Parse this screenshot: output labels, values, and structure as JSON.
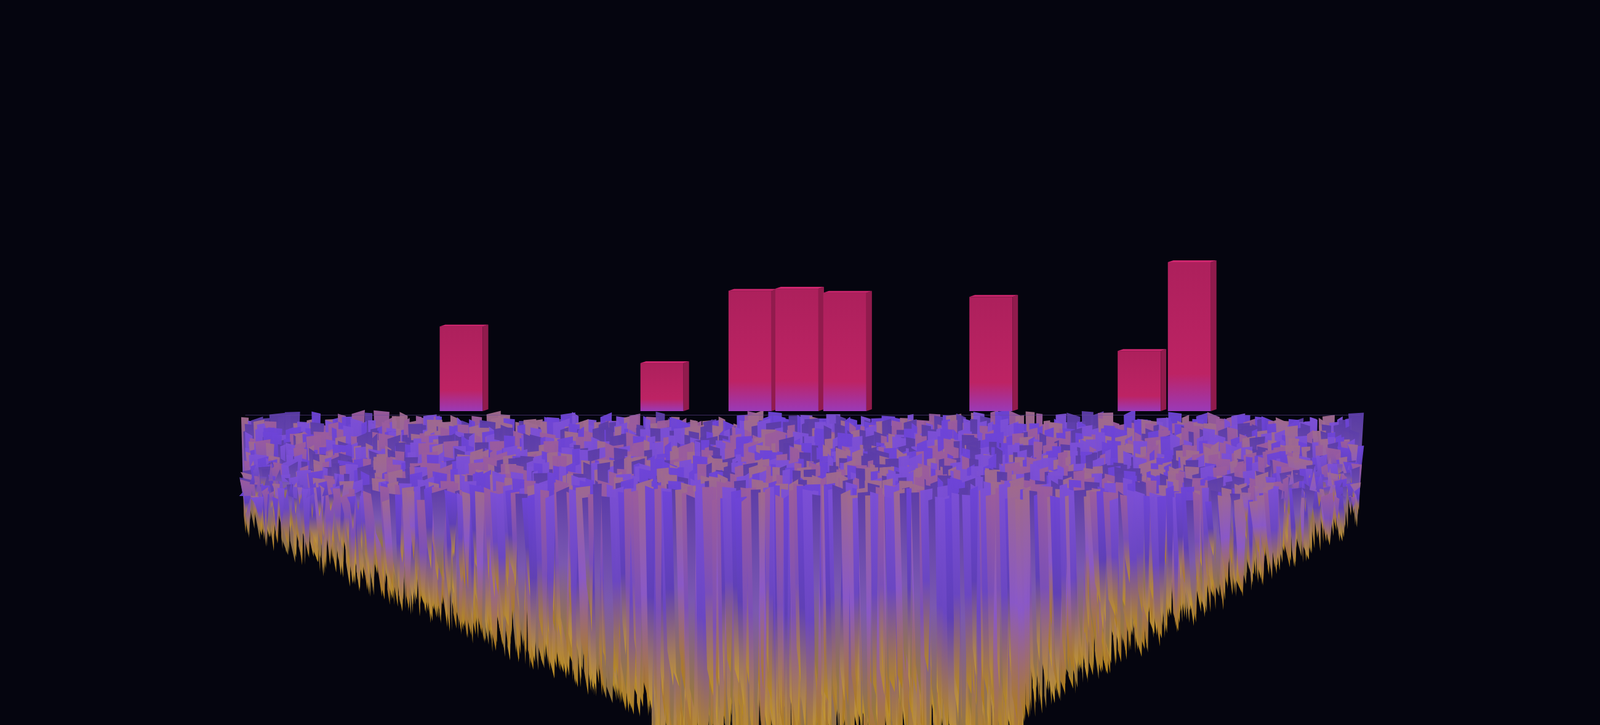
{
  "chart_data": {
    "type": "bar3d",
    "tick_labels": false,
    "x": [
      19.4,
      37.4,
      45.3,
      49.5,
      53.8,
      66.9,
      80.2,
      84.7
    ],
    "values": [
      83,
      47,
      118,
      120,
      116,
      112,
      59,
      146
    ],
    "xlim": [
      0,
      100
    ],
    "color": "#b3215f"
  }
}
